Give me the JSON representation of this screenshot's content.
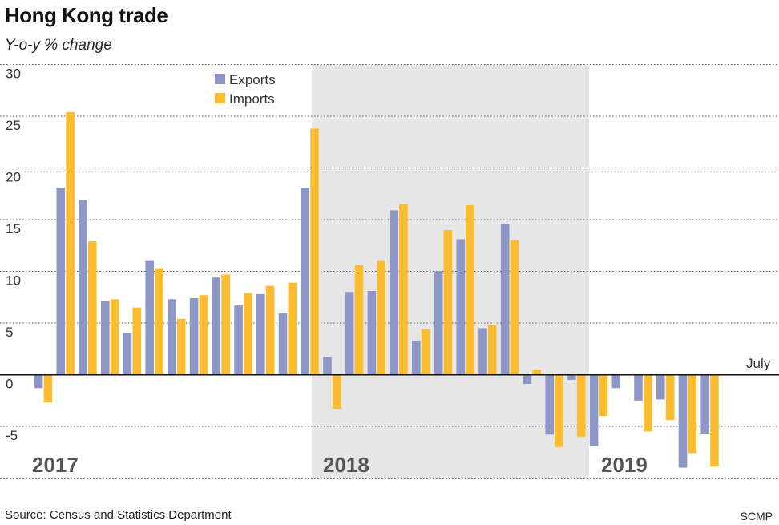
{
  "header": {
    "title": "Hong Kong trade",
    "subtitle": "Y-o-y % change"
  },
  "footer": {
    "source": "Source: Census and Statistics Department",
    "credit": "SCMP"
  },
  "colors": {
    "exports": "#8c97c8",
    "imports": "#fbbd2e",
    "shade": "#e6e6e6",
    "grid": "#555555",
    "zero": "#111111"
  },
  "chart_data": {
    "type": "bar",
    "ylim": [
      -10,
      30
    ],
    "yticks": [
      30,
      25,
      20,
      15,
      10,
      5,
      0,
      -5
    ],
    "grid": "dotted horizontal",
    "legend": {
      "placement": "top-left",
      "entries": [
        "Exports",
        "Imports"
      ]
    },
    "year_labels": [
      "2017",
      "2018",
      "2019"
    ],
    "shaded_year": "2018",
    "annotation": "July",
    "categories": [
      "2017-01",
      "2017-02",
      "2017-03",
      "2017-04",
      "2017-05",
      "2017-06",
      "2017-07",
      "2017-08",
      "2017-09",
      "2017-10",
      "2017-11",
      "2017-12",
      "2018-01",
      "2018-02",
      "2018-03",
      "2018-04",
      "2018-05",
      "2018-06",
      "2018-07",
      "2018-08",
      "2018-09",
      "2018-10",
      "2018-11",
      "2018-12",
      "2019-01",
      "2019-02",
      "2019-03",
      "2019-04",
      "2019-05",
      "2019-06",
      "2019-07"
    ],
    "series": [
      {
        "name": "Exports",
        "values": [
          -1.3,
          18.1,
          16.9,
          7.1,
          4.0,
          11.0,
          7.3,
          7.4,
          9.4,
          6.7,
          7.8,
          6.0,
          18.1,
          1.7,
          8.0,
          8.1,
          15.9,
          3.3,
          10.0,
          13.1,
          4.5,
          14.6,
          -0.9,
          -5.8,
          -0.5,
          -6.9,
          -1.3,
          -2.5,
          -2.4,
          -9.0,
          -5.7
        ]
      },
      {
        "name": "Imports",
        "values": [
          -2.7,
          25.4,
          12.9,
          7.3,
          6.5,
          10.3,
          5.4,
          7.7,
          9.7,
          7.9,
          8.6,
          8.9,
          23.8,
          -3.3,
          10.6,
          11.0,
          16.5,
          4.4,
          14.0,
          16.4,
          4.8,
          13.0,
          0.5,
          -7.0,
          -6.0,
          -4.0,
          null,
          -5.5,
          -4.4,
          -7.6,
          -8.9
        ]
      }
    ]
  }
}
